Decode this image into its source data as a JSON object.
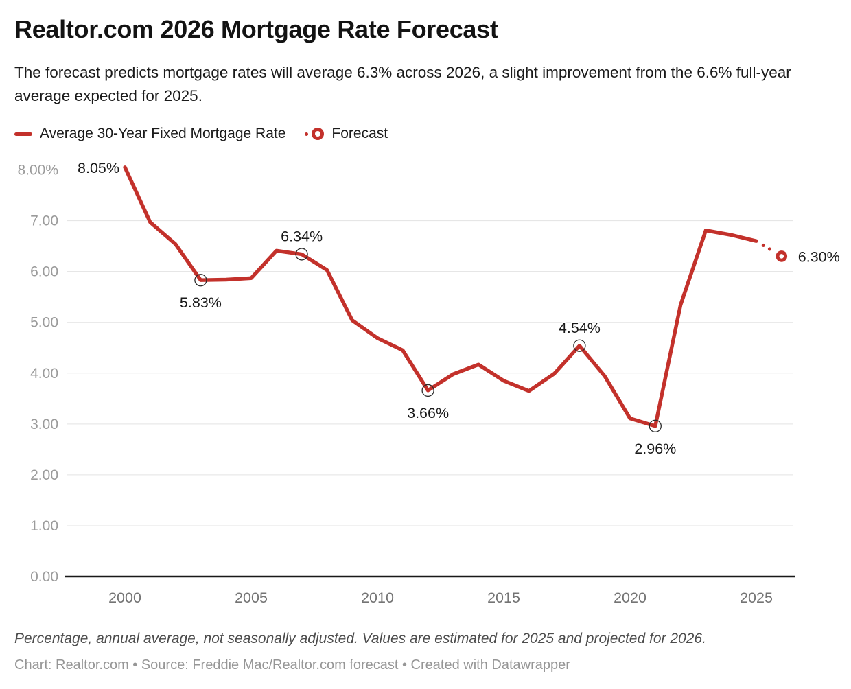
{
  "header": {
    "title": "Realtor.com 2026 Mortgage Rate Forecast",
    "subtitle": "The forecast predicts mortgage rates will average 6.3% across 2026, a slight improvement from the 6.6% full-year average expected for 2025."
  },
  "legend": {
    "items": [
      {
        "label": "Average 30-Year Fixed Mortgage Rate",
        "icon": "line-swatch"
      },
      {
        "label": "Forecast",
        "icon": "forecast-marker"
      }
    ]
  },
  "colors": {
    "line": "#c3312b",
    "grid": "#e3e3e3",
    "axis": "#191919",
    "y_label": "#9b9b9b",
    "x_label": "#747474",
    "data_label": "#1a1a1a",
    "marker_outline": "#2b2b2b"
  },
  "chart_data": {
    "type": "line",
    "title": "Realtor.com 2026 Mortgage Rate Forecast",
    "xlabel": "",
    "ylabel": "",
    "ylim": [
      0,
      8
    ],
    "ytick_step": 1,
    "ytick_top_suffix": "%",
    "xticks": [
      2000,
      2005,
      2010,
      2015,
      2020,
      2025
    ],
    "grid": true,
    "legend_position": "top",
    "x": [
      2000,
      2001,
      2002,
      2003,
      2004,
      2005,
      2006,
      2007,
      2008,
      2009,
      2010,
      2011,
      2012,
      2013,
      2014,
      2015,
      2016,
      2017,
      2018,
      2019,
      2020,
      2021,
      2022,
      2023,
      2024,
      2025,
      2026
    ],
    "series": [
      {
        "name": "Average 30-Year Fixed Mortgage Rate",
        "style": "solid",
        "values": [
          8.05,
          6.97,
          6.54,
          5.83,
          5.84,
          5.87,
          6.41,
          6.34,
          6.03,
          5.04,
          4.69,
          4.45,
          3.66,
          3.98,
          4.17,
          3.85,
          3.65,
          3.99,
          4.54,
          3.94,
          3.11,
          2.96,
          5.34,
          6.81,
          6.72,
          6.6,
          null
        ]
      },
      {
        "name": "Forecast",
        "style": "dotted",
        "values": [
          null,
          null,
          null,
          null,
          null,
          null,
          null,
          null,
          null,
          null,
          null,
          null,
          null,
          null,
          null,
          null,
          null,
          null,
          null,
          null,
          null,
          null,
          null,
          null,
          null,
          6.6,
          6.3
        ]
      }
    ],
    "labeled_points": [
      {
        "x": 2000,
        "value": 8.05,
        "label": "8.05%",
        "position": "left",
        "marker": "none"
      },
      {
        "x": 2003,
        "value": 5.83,
        "label": "5.83%",
        "position": "below",
        "marker": "open-circle"
      },
      {
        "x": 2007,
        "value": 6.34,
        "label": "6.34%",
        "position": "above",
        "marker": "open-circle"
      },
      {
        "x": 2012,
        "value": 3.66,
        "label": "3.66%",
        "position": "below",
        "marker": "open-circle"
      },
      {
        "x": 2018,
        "value": 4.54,
        "label": "4.54%",
        "position": "above",
        "marker": "open-circle"
      },
      {
        "x": 2021,
        "value": 2.96,
        "label": "2.96%",
        "position": "below",
        "marker": "open-circle"
      },
      {
        "x": 2026,
        "value": 6.3,
        "label": "6.30%",
        "position": "right",
        "marker": "forecast-ring"
      }
    ]
  },
  "footer": {
    "note": "Percentage, annual average, not seasonally adjusted. Values are estimated for 2025 and projected for 2026.",
    "credit": "Chart: Realtor.com • Source: Freddie Mac/Realtor.com forecast • Created with Datawrapper"
  }
}
